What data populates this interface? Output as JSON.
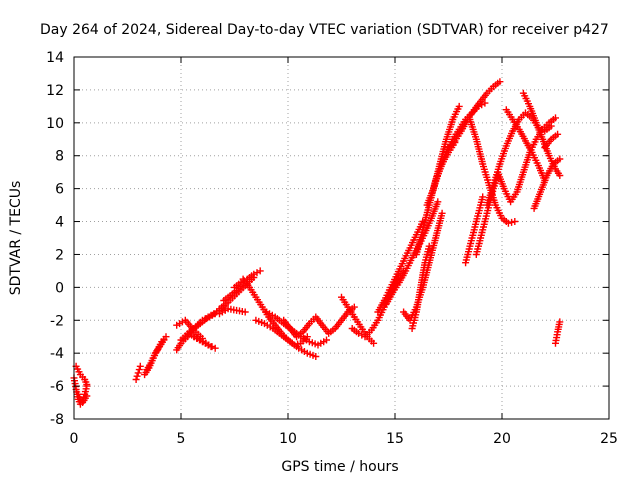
{
  "chart_data": {
    "type": "scatter",
    "title": "Day 264 of 2024, Sidereal Day-to-day VTEC variation (SDTVAR) for receiver p427",
    "xlabel": "GPS time / hours",
    "ylabel": "SDTVAR / TECUs",
    "xlim": [
      0,
      25
    ],
    "ylim": [
      -8,
      14
    ],
    "xticks": [
      "0",
      "5",
      "10",
      "15",
      "20",
      "25"
    ],
    "yticks": [
      "-8",
      "-6",
      "-4",
      "-2",
      "0",
      "2",
      "4",
      "6",
      "8",
      "10",
      "12",
      "14"
    ],
    "grid": true,
    "marker": "+",
    "color": "#ff0000",
    "series": [
      {
        "x": [
          0.0,
          0.1,
          0.2,
          0.3,
          0.4,
          0.5,
          0.6
        ],
        "y": [
          -5.5,
          -6.2,
          -6.8,
          -7.1,
          -6.9,
          -6.5,
          -6.0
        ]
      },
      {
        "x": [
          0.1,
          0.3,
          0.5,
          0.6
        ],
        "y": [
          -4.8,
          -5.3,
          -5.6,
          -5.9
        ]
      },
      {
        "x": [
          0.2,
          0.4,
          0.6
        ],
        "y": [
          -6.5,
          -7.0,
          -6.6
        ]
      },
      {
        "x": [
          2.9,
          3.0,
          3.1
        ],
        "y": [
          -5.6,
          -5.2,
          -4.8
        ]
      },
      {
        "x": [
          3.3,
          3.5,
          3.7,
          3.9,
          4.1,
          4.3
        ],
        "y": [
          -5.3,
          -4.9,
          -4.3,
          -3.8,
          -3.3,
          -3.0
        ]
      },
      {
        "x": [
          3.4,
          3.6,
          3.8,
          4.0,
          4.2
        ],
        "y": [
          -5.0,
          -4.6,
          -4.0,
          -3.6,
          -3.2
        ]
      },
      {
        "x": [
          4.8,
          5.0,
          5.3,
          5.6,
          6.0,
          6.4,
          6.8,
          7.0
        ],
        "y": [
          -3.8,
          -3.4,
          -3.0,
          -2.5,
          -2.0,
          -1.7,
          -1.4,
          -1.2
        ]
      },
      {
        "x": [
          5.0,
          5.4,
          5.8,
          6.2,
          6.6
        ],
        "y": [
          -3.2,
          -2.7,
          -2.3,
          -1.9,
          -1.6
        ]
      },
      {
        "x": [
          5.6,
          6.0,
          6.4,
          6.6,
          6.3,
          5.9,
          5.5
        ],
        "y": [
          -3.0,
          -3.3,
          -3.6,
          -3.7,
          -3.5,
          -3.2,
          -2.9
        ]
      },
      {
        "x": [
          4.8,
          5.2,
          5.6,
          6.0
        ],
        "y": [
          -2.3,
          -2.0,
          -2.6,
          -3.1
        ]
      },
      {
        "x": [
          6.8,
          7.2,
          7.6,
          8.0,
          8.4
        ],
        "y": [
          -1.3,
          -0.9,
          -0.4,
          0.1,
          0.6
        ]
      },
      {
        "x": [
          7.5,
          7.8,
          8.1,
          8.4,
          8.7
        ],
        "y": [
          0.0,
          0.3,
          0.5,
          0.8,
          1.0
        ]
      },
      {
        "x": [
          7.0,
          7.3,
          7.6,
          7.9
        ],
        "y": [
          -0.8,
          -0.5,
          -0.2,
          0.2
        ]
      },
      {
        "x": [
          6.8,
          7.2,
          7.6,
          8.0
        ],
        "y": [
          -1.6,
          -1.3,
          -1.4,
          -1.5
        ]
      },
      {
        "x": [
          7.9,
          8.2,
          8.5,
          8.8,
          9.1,
          9.4,
          9.7,
          10.0,
          10.3,
          10.6,
          10.9
        ],
        "y": [
          0.5,
          0.0,
          -0.6,
          -1.2,
          -1.8,
          -2.3,
          -2.8,
          -3.2,
          -3.5,
          -3.4,
          -3.0
        ]
      },
      {
        "x": [
          8.5,
          8.9,
          9.3,
          9.7,
          10.1,
          10.5,
          10.9,
          11.3
        ],
        "y": [
          -2.0,
          -2.2,
          -2.5,
          -2.9,
          -3.3,
          -3.7,
          -4.0,
          -4.2
        ]
      },
      {
        "x": [
          9.0,
          9.4,
          9.8,
          10.2,
          10.6,
          11.0,
          11.4,
          11.8
        ],
        "y": [
          -1.5,
          -1.8,
          -2.2,
          -2.6,
          -3.0,
          -3.3,
          -3.5,
          -3.2
        ]
      },
      {
        "x": [
          9.8,
          10.1,
          10.4,
          10.7,
          11.0,
          11.3,
          11.6,
          11.9,
          12.2,
          12.5,
          12.8,
          13.1
        ],
        "y": [
          -2.0,
          -2.5,
          -3.0,
          -2.7,
          -2.2,
          -1.8,
          -2.3,
          -2.8,
          -2.5,
          -2.0,
          -1.5,
          -1.2
        ]
      },
      {
        "x": [
          12.5,
          12.8,
          13.1,
          13.4,
          13.7,
          14.0
        ],
        "y": [
          -0.6,
          -1.2,
          -1.8,
          -2.4,
          -3.0,
          -3.4
        ]
      },
      {
        "x": [
          13.0,
          13.3,
          13.6,
          13.9,
          14.2,
          14.5,
          14.8,
          15.1,
          15.4
        ],
        "y": [
          -2.5,
          -2.8,
          -3.0,
          -2.6,
          -2.0,
          -1.2,
          -0.4,
          0.4,
          1.0
        ]
      },
      {
        "x": [
          14.2,
          14.5,
          14.8,
          15.1,
          15.4,
          15.7,
          16.0,
          16.3
        ],
        "y": [
          -1.5,
          -0.8,
          0.0,
          0.8,
          1.6,
          2.4,
          3.2,
          4.0
        ]
      },
      {
        "x": [
          14.6,
          14.9,
          15.2,
          15.5,
          15.8,
          16.1,
          16.4,
          16.7,
          17.0
        ],
        "y": [
          -1.0,
          -0.3,
          0.3,
          1.0,
          1.8,
          2.5,
          3.3,
          4.2,
          5.2
        ]
      },
      {
        "x": [
          15.4,
          15.7,
          16.0,
          16.3,
          16.6,
          16.9,
          17.2
        ],
        "y": [
          -1.5,
          -2.0,
          -1.2,
          0.0,
          1.5,
          3.0,
          4.5
        ]
      },
      {
        "x": [
          15.8,
          16.0,
          16.2,
          16.4,
          16.6
        ],
        "y": [
          -2.5,
          -1.5,
          0.0,
          1.5,
          2.5
        ]
      },
      {
        "x": [
          16.0,
          16.3,
          16.6,
          16.9,
          17.2,
          17.5,
          17.8
        ],
        "y": [
          2.0,
          3.5,
          5.0,
          6.5,
          7.5,
          8.2,
          8.8
        ]
      },
      {
        "x": [
          16.5,
          16.8,
          17.1,
          17.4,
          17.7,
          18.0
        ],
        "y": [
          5.0,
          6.0,
          7.5,
          9.0,
          10.2,
          11.0
        ]
      },
      {
        "x": [
          16.8,
          17.1,
          17.4,
          17.7,
          18.0,
          18.3,
          18.6,
          18.9,
          19.2
        ],
        "y": [
          6.0,
          7.2,
          8.2,
          9.0,
          9.6,
          10.2,
          10.6,
          11.0,
          11.2
        ]
      },
      {
        "x": [
          17.5,
          17.8,
          18.1,
          18.4,
          18.7,
          19.0,
          19.3,
          19.6,
          19.9
        ],
        "y": [
          8.5,
          8.9,
          9.5,
          10.2,
          10.8,
          11.3,
          11.8,
          12.2,
          12.5
        ]
      },
      {
        "x": [
          18.5,
          18.8,
          19.1,
          19.4,
          19.7,
          20.0,
          20.3,
          20.6
        ],
        "y": [
          10.2,
          9.0,
          7.5,
          6.2,
          5.0,
          4.2,
          3.9,
          4.0
        ]
      },
      {
        "x": [
          18.3,
          18.5,
          18.7,
          18.9,
          19.1
        ],
        "y": [
          1.5,
          2.5,
          3.5,
          4.5,
          5.5
        ]
      },
      {
        "x": [
          18.8,
          19.0,
          19.2,
          19.4,
          19.6,
          19.8
        ],
        "y": [
          2.0,
          3.0,
          4.0,
          5.0,
          6.0,
          6.8
        ]
      },
      {
        "x": [
          19.3,
          19.6,
          19.9,
          20.2,
          20.5,
          20.8,
          21.1,
          21.4,
          21.7,
          22.0,
          22.3
        ],
        "y": [
          5.0,
          6.2,
          7.5,
          8.6,
          9.5,
          10.2,
          10.6,
          10.3,
          9.7,
          9.5,
          9.8
        ]
      },
      {
        "x": [
          19.8,
          20.1,
          20.4,
          20.7,
          21.0,
          21.3,
          21.6,
          21.9,
          22.2,
          22.5
        ],
        "y": [
          7.0,
          6.0,
          5.2,
          5.8,
          7.0,
          8.2,
          9.0,
          9.6,
          10.0,
          10.3
        ]
      },
      {
        "x": [
          20.2,
          20.5,
          20.8,
          21.1,
          21.4,
          21.7,
          22.0
        ],
        "y": [
          10.8,
          10.2,
          9.6,
          8.9,
          8.2,
          7.4,
          6.5
        ]
      },
      {
        "x": [
          21.0,
          21.3,
          21.6,
          21.9,
          22.2,
          22.5,
          22.7
        ],
        "y": [
          11.8,
          11.0,
          10.0,
          9.0,
          8.0,
          7.2,
          6.8
        ]
      },
      {
        "x": [
          21.5,
          21.8,
          22.1,
          22.4,
          22.7
        ],
        "y": [
          4.8,
          5.8,
          6.8,
          7.5,
          7.8
        ]
      },
      {
        "x": [
          22.0,
          22.3,
          22.6
        ],
        "y": [
          8.5,
          9.0,
          9.3
        ]
      },
      {
        "x": [
          22.5,
          22.6,
          22.7
        ],
        "y": [
          -3.4,
          -2.7,
          -2.1
        ]
      }
    ]
  }
}
